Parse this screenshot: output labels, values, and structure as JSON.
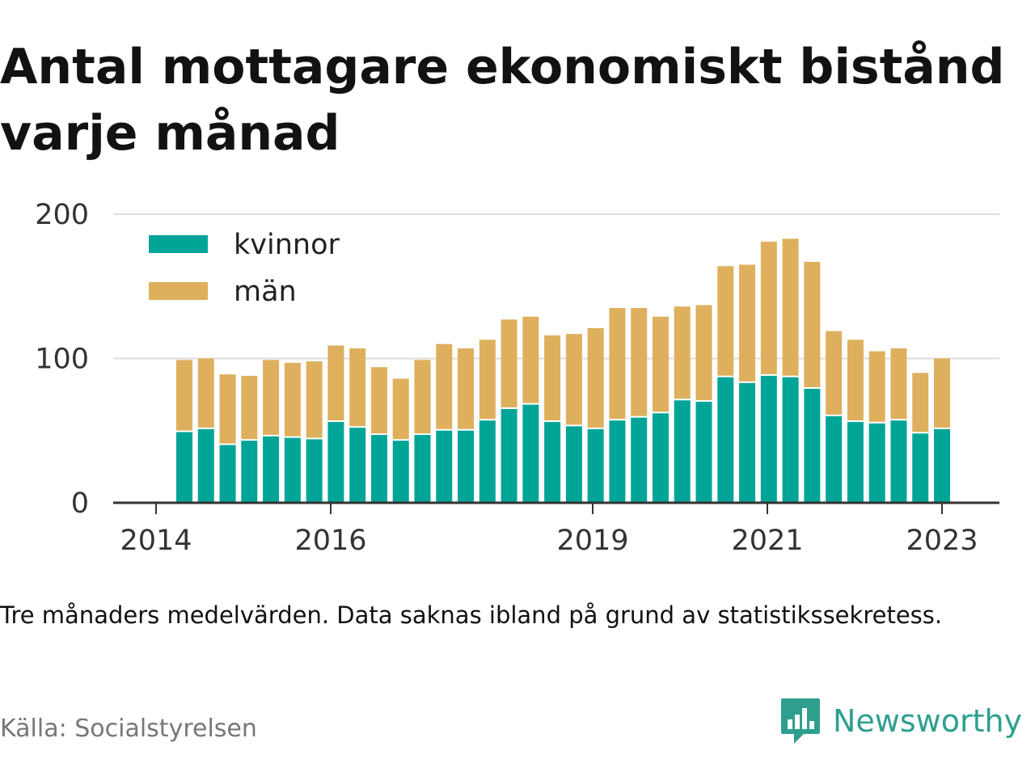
{
  "title": "Antal mottagare ekonomiskt bistånd varje månad",
  "note": "Tre månaders medelvärden. Data saknas ibland på grund av statistikssekretess.",
  "source": "Källa: Socialstyrelsen",
  "brand": "Newsworthy",
  "colors": {
    "kvinnor": "#00a598",
    "man": "#deb05e",
    "brand": "#2e9f8e",
    "grid": "#dddddd",
    "axis": "#333333"
  },
  "chart_data": {
    "type": "bar",
    "stacked": true,
    "x_ticks": [
      "2014",
      "2016",
      "2019",
      "2021",
      "2023"
    ],
    "y_ticks": [
      "0",
      "100",
      "200"
    ],
    "ylim": [
      0,
      200
    ],
    "legend_position": "top-left",
    "grid": true,
    "series": [
      {
        "name": "kvinnor",
        "color": "#00a598",
        "values": [
          49,
          51,
          40,
          43,
          46,
          45,
          44,
          56,
          52,
          47,
          43,
          47,
          50,
          50,
          57,
          65,
          68,
          56,
          53,
          51,
          57,
          59,
          62,
          71,
          70,
          87,
          83,
          88,
          87,
          79,
          60,
          56,
          55,
          57,
          48,
          51
        ]
      },
      {
        "name": "män",
        "color": "#deb05e",
        "values": [
          50,
          49,
          49,
          45,
          53,
          52,
          54,
          53,
          55,
          47,
          43,
          52,
          60,
          57,
          56,
          62,
          61,
          60,
          64,
          70,
          78,
          76,
          67,
          65,
          67,
          77,
          82,
          93,
          96,
          88,
          59,
          57,
          50,
          50,
          42,
          49
        ]
      }
    ]
  }
}
